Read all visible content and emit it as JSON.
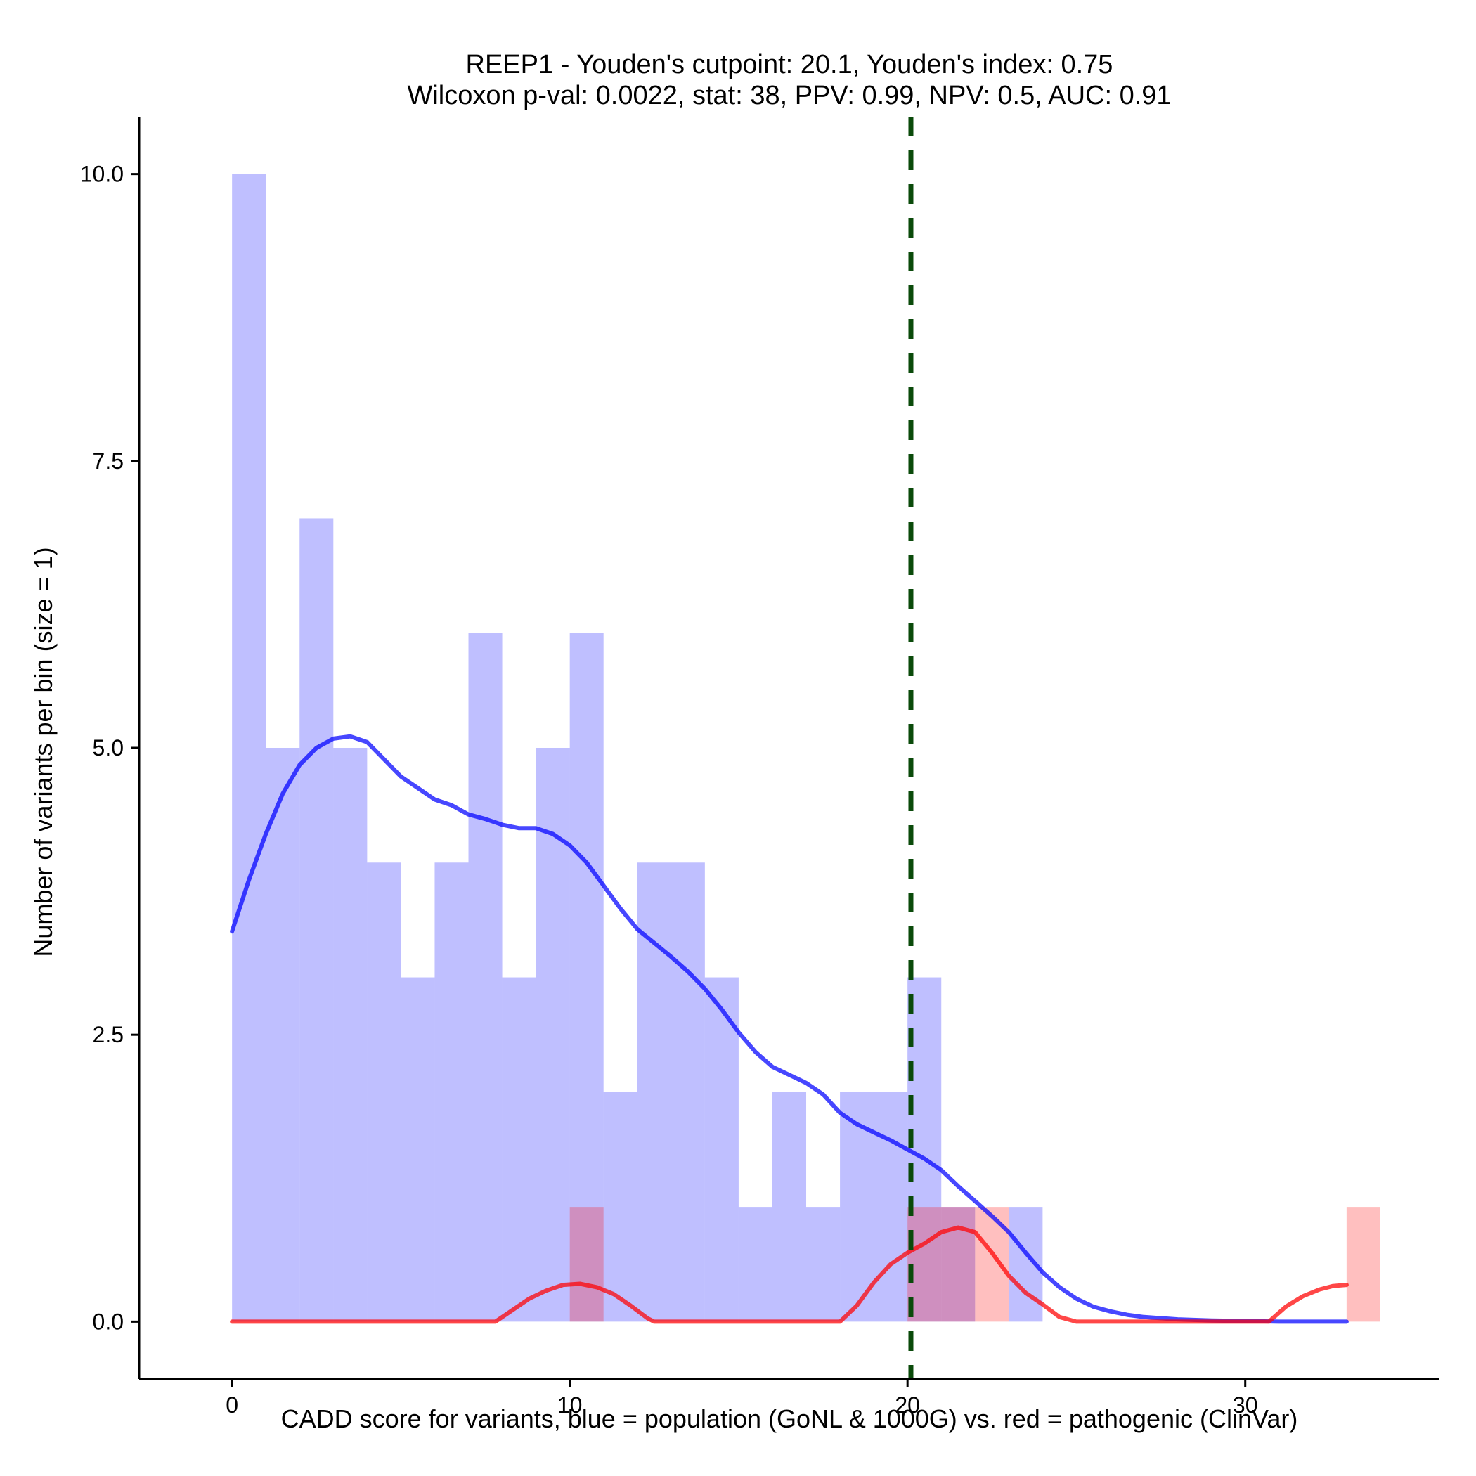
{
  "chart_data": {
    "type": "histogram",
    "title_line1": "REEP1 - Youden's cutpoint: 20.1, Youden's index: 0.75",
    "title_line2": "Wilcoxon p-val: 0.0022, stat: 38, PPV: 0.99, NPV: 0.5, AUC: 0.91",
    "xlabel": "CADD score for variants, blue = population (GoNL & 1000G) vs. red = pathogenic (ClinVar)",
    "ylabel": "Number of variants per bin (size = 1)",
    "xlim": [
      -2.75,
      35.75
    ],
    "ylim": [
      -0.5,
      10.5
    ],
    "x_ticks": [
      0,
      10,
      20,
      30
    ],
    "x_tick_labels": [
      "0",
      "10",
      "20",
      "30"
    ],
    "y_ticks": [
      0,
      2.5,
      5,
      7.5,
      10
    ],
    "y_tick_labels": [
      "0.0",
      "2.5",
      "5.0",
      "7.5",
      "10.0"
    ],
    "bin_width": 1,
    "cutpoint": 20.1,
    "series": [
      {
        "name": "population (GoNL & 1000G)",
        "color": "#0000ff",
        "bins": [
          {
            "x0": 0,
            "count": 10
          },
          {
            "x0": 1,
            "count": 5
          },
          {
            "x0": 2,
            "count": 7
          },
          {
            "x0": 3,
            "count": 5
          },
          {
            "x0": 4,
            "count": 4
          },
          {
            "x0": 5,
            "count": 3
          },
          {
            "x0": 6,
            "count": 4
          },
          {
            "x0": 7,
            "count": 6
          },
          {
            "x0": 8,
            "count": 3
          },
          {
            "x0": 9,
            "count": 5
          },
          {
            "x0": 10,
            "count": 6
          },
          {
            "x0": 11,
            "count": 2
          },
          {
            "x0": 12,
            "count": 4
          },
          {
            "x0": 13,
            "count": 4
          },
          {
            "x0": 14,
            "count": 3
          },
          {
            "x0": 15,
            "count": 1
          },
          {
            "x0": 16,
            "count": 2
          },
          {
            "x0": 17,
            "count": 1
          },
          {
            "x0": 18,
            "count": 2
          },
          {
            "x0": 19,
            "count": 2
          },
          {
            "x0": 20,
            "count": 3
          },
          {
            "x0": 21,
            "count": 1
          },
          {
            "x0": 23,
            "count": 1
          }
        ],
        "density": [
          [
            0,
            3.4
          ],
          [
            0.5,
            3.85
          ],
          [
            1,
            4.25
          ],
          [
            1.5,
            4.6
          ],
          [
            2,
            4.85
          ],
          [
            2.5,
            5.0
          ],
          [
            3,
            5.08
          ],
          [
            3.5,
            5.1
          ],
          [
            4,
            5.05
          ],
          [
            4.5,
            4.9
          ],
          [
            5,
            4.75
          ],
          [
            5.5,
            4.65
          ],
          [
            6,
            4.55
          ],
          [
            6.5,
            4.5
          ],
          [
            7,
            4.42
          ],
          [
            7.5,
            4.38
          ],
          [
            8,
            4.33
          ],
          [
            8.5,
            4.3
          ],
          [
            9,
            4.3
          ],
          [
            9.5,
            4.25
          ],
          [
            10,
            4.15
          ],
          [
            10.5,
            4.0
          ],
          [
            11,
            3.8
          ],
          [
            11.5,
            3.6
          ],
          [
            12,
            3.42
          ],
          [
            12.5,
            3.3
          ],
          [
            13,
            3.18
          ],
          [
            13.5,
            3.05
          ],
          [
            14,
            2.9
          ],
          [
            14.5,
            2.72
          ],
          [
            15,
            2.52
          ],
          [
            15.5,
            2.35
          ],
          [
            16,
            2.22
          ],
          [
            16.5,
            2.15
          ],
          [
            17,
            2.08
          ],
          [
            17.5,
            1.98
          ],
          [
            18,
            1.82
          ],
          [
            18.5,
            1.72
          ],
          [
            19,
            1.65
          ],
          [
            19.5,
            1.58
          ],
          [
            20,
            1.5
          ],
          [
            20.5,
            1.42
          ],
          [
            21,
            1.32
          ],
          [
            21.5,
            1.18
          ],
          [
            22,
            1.05
          ],
          [
            22.5,
            0.92
          ],
          [
            23,
            0.78
          ],
          [
            23.5,
            0.6
          ],
          [
            24,
            0.43
          ],
          [
            24.5,
            0.3
          ],
          [
            25,
            0.2
          ],
          [
            25.5,
            0.13
          ],
          [
            26,
            0.09
          ],
          [
            26.5,
            0.06
          ],
          [
            27,
            0.04
          ],
          [
            28,
            0.02
          ],
          [
            29,
            0.01
          ],
          [
            30,
            0.005
          ],
          [
            31,
            0.0
          ],
          [
            32,
            0.0
          ],
          [
            33,
            0.0
          ]
        ]
      },
      {
        "name": "pathogenic (ClinVar)",
        "color": "#ff0000",
        "bins": [
          {
            "x0": 10,
            "count": 1
          },
          {
            "x0": 20,
            "count": 1
          },
          {
            "x0": 21,
            "count": 1
          },
          {
            "x0": 22,
            "count": 1
          },
          {
            "x0": 33,
            "count": 1
          }
        ],
        "density": [
          [
            0,
            0
          ],
          [
            7.5,
            0
          ],
          [
            7.8,
            0
          ],
          [
            8.3,
            0.1
          ],
          [
            8.8,
            0.2
          ],
          [
            9.3,
            0.27
          ],
          [
            9.8,
            0.32
          ],
          [
            10.3,
            0.33
          ],
          [
            10.8,
            0.3
          ],
          [
            11.3,
            0.24
          ],
          [
            11.8,
            0.14
          ],
          [
            12.3,
            0.03
          ],
          [
            12.5,
            0
          ],
          [
            18,
            0
          ],
          [
            18.5,
            0.14
          ],
          [
            19,
            0.34
          ],
          [
            19.5,
            0.5
          ],
          [
            20,
            0.6
          ],
          [
            20.5,
            0.68
          ],
          [
            21,
            0.78
          ],
          [
            21.5,
            0.82
          ],
          [
            22,
            0.78
          ],
          [
            22.5,
            0.6
          ],
          [
            23,
            0.4
          ],
          [
            23.5,
            0.25
          ],
          [
            24,
            0.15
          ],
          [
            24.5,
            0.04
          ],
          [
            25,
            0
          ],
          [
            30.7,
            0
          ],
          [
            31.2,
            0.13
          ],
          [
            31.7,
            0.22
          ],
          [
            32.2,
            0.28
          ],
          [
            32.6,
            0.31
          ],
          [
            33,
            0.32
          ]
        ]
      }
    ]
  }
}
